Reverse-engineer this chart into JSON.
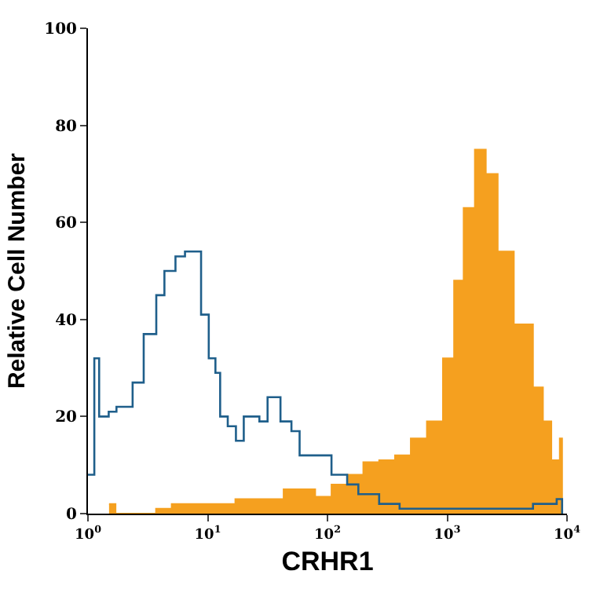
{
  "chart_data": {
    "type": "area",
    "xlabel": "CRHR1",
    "ylabel": "Relative Cell Number",
    "log": "x",
    "xlim": [
      1,
      10000
    ],
    "ylim": [
      0,
      100
    ],
    "xticks": [
      {
        "value": 1,
        "label": "10$^{0}$"
      },
      {
        "value": 10,
        "label": "10$^{1}$"
      },
      {
        "value": 100,
        "label": "10$^{2}$"
      },
      {
        "value": 1000,
        "label": "10$^{3}$"
      },
      {
        "value": 10000,
        "label": "10$^{4}$"
      }
    ],
    "yticks": [
      0,
      20,
      40,
      60,
      80,
      100
    ],
    "grid": false,
    "marker": "none",
    "series": [
      {
        "color": "#f5a01f",
        "x": [
          1.5,
          1.7,
          2.5,
          3.7,
          5,
          8,
          12,
          17,
          25,
          43,
          58,
          79,
          108,
          146,
          199,
          270,
          366,
          496,
          676,
          920,
          1140,
          1370,
          1700,
          2100,
          2640,
          3600,
          5200,
          6300,
          7400,
          8700,
          9100
        ],
        "values": [
          2,
          0,
          0,
          1,
          2,
          2,
          2,
          3,
          3,
          5,
          5,
          3.5,
          6,
          8,
          10.6,
          11,
          12,
          15.5,
          19,
          32,
          48,
          63,
          75,
          70,
          54,
          39,
          26,
          19,
          11,
          15.5,
          0
        ]
      },
      {
        "type": "step",
        "color": "#1f5f8b",
        "x": [
          1,
          1.13,
          1.24,
          1.49,
          1.73,
          2.36,
          2.92,
          3.72,
          4.35,
          5.38,
          6.46,
          7.3,
          8.8,
          10.2,
          11.6,
          12.7,
          14.7,
          17.2,
          20,
          27,
          31.6,
          40.5,
          50,
          58.5,
          79,
          108,
          146,
          181,
          270,
          400,
          920,
          1700,
          3100,
          5200,
          8200,
          9100
        ],
        "values": [
          8,
          32,
          20,
          21,
          22,
          27,
          37,
          45,
          50,
          53,
          54,
          54,
          41,
          32,
          29,
          20,
          18,
          15,
          20,
          19,
          24,
          19,
          17,
          12,
          12,
          8,
          6,
          4,
          2,
          1,
          1,
          1,
          1,
          2,
          3,
          0
        ]
      }
    ]
  }
}
